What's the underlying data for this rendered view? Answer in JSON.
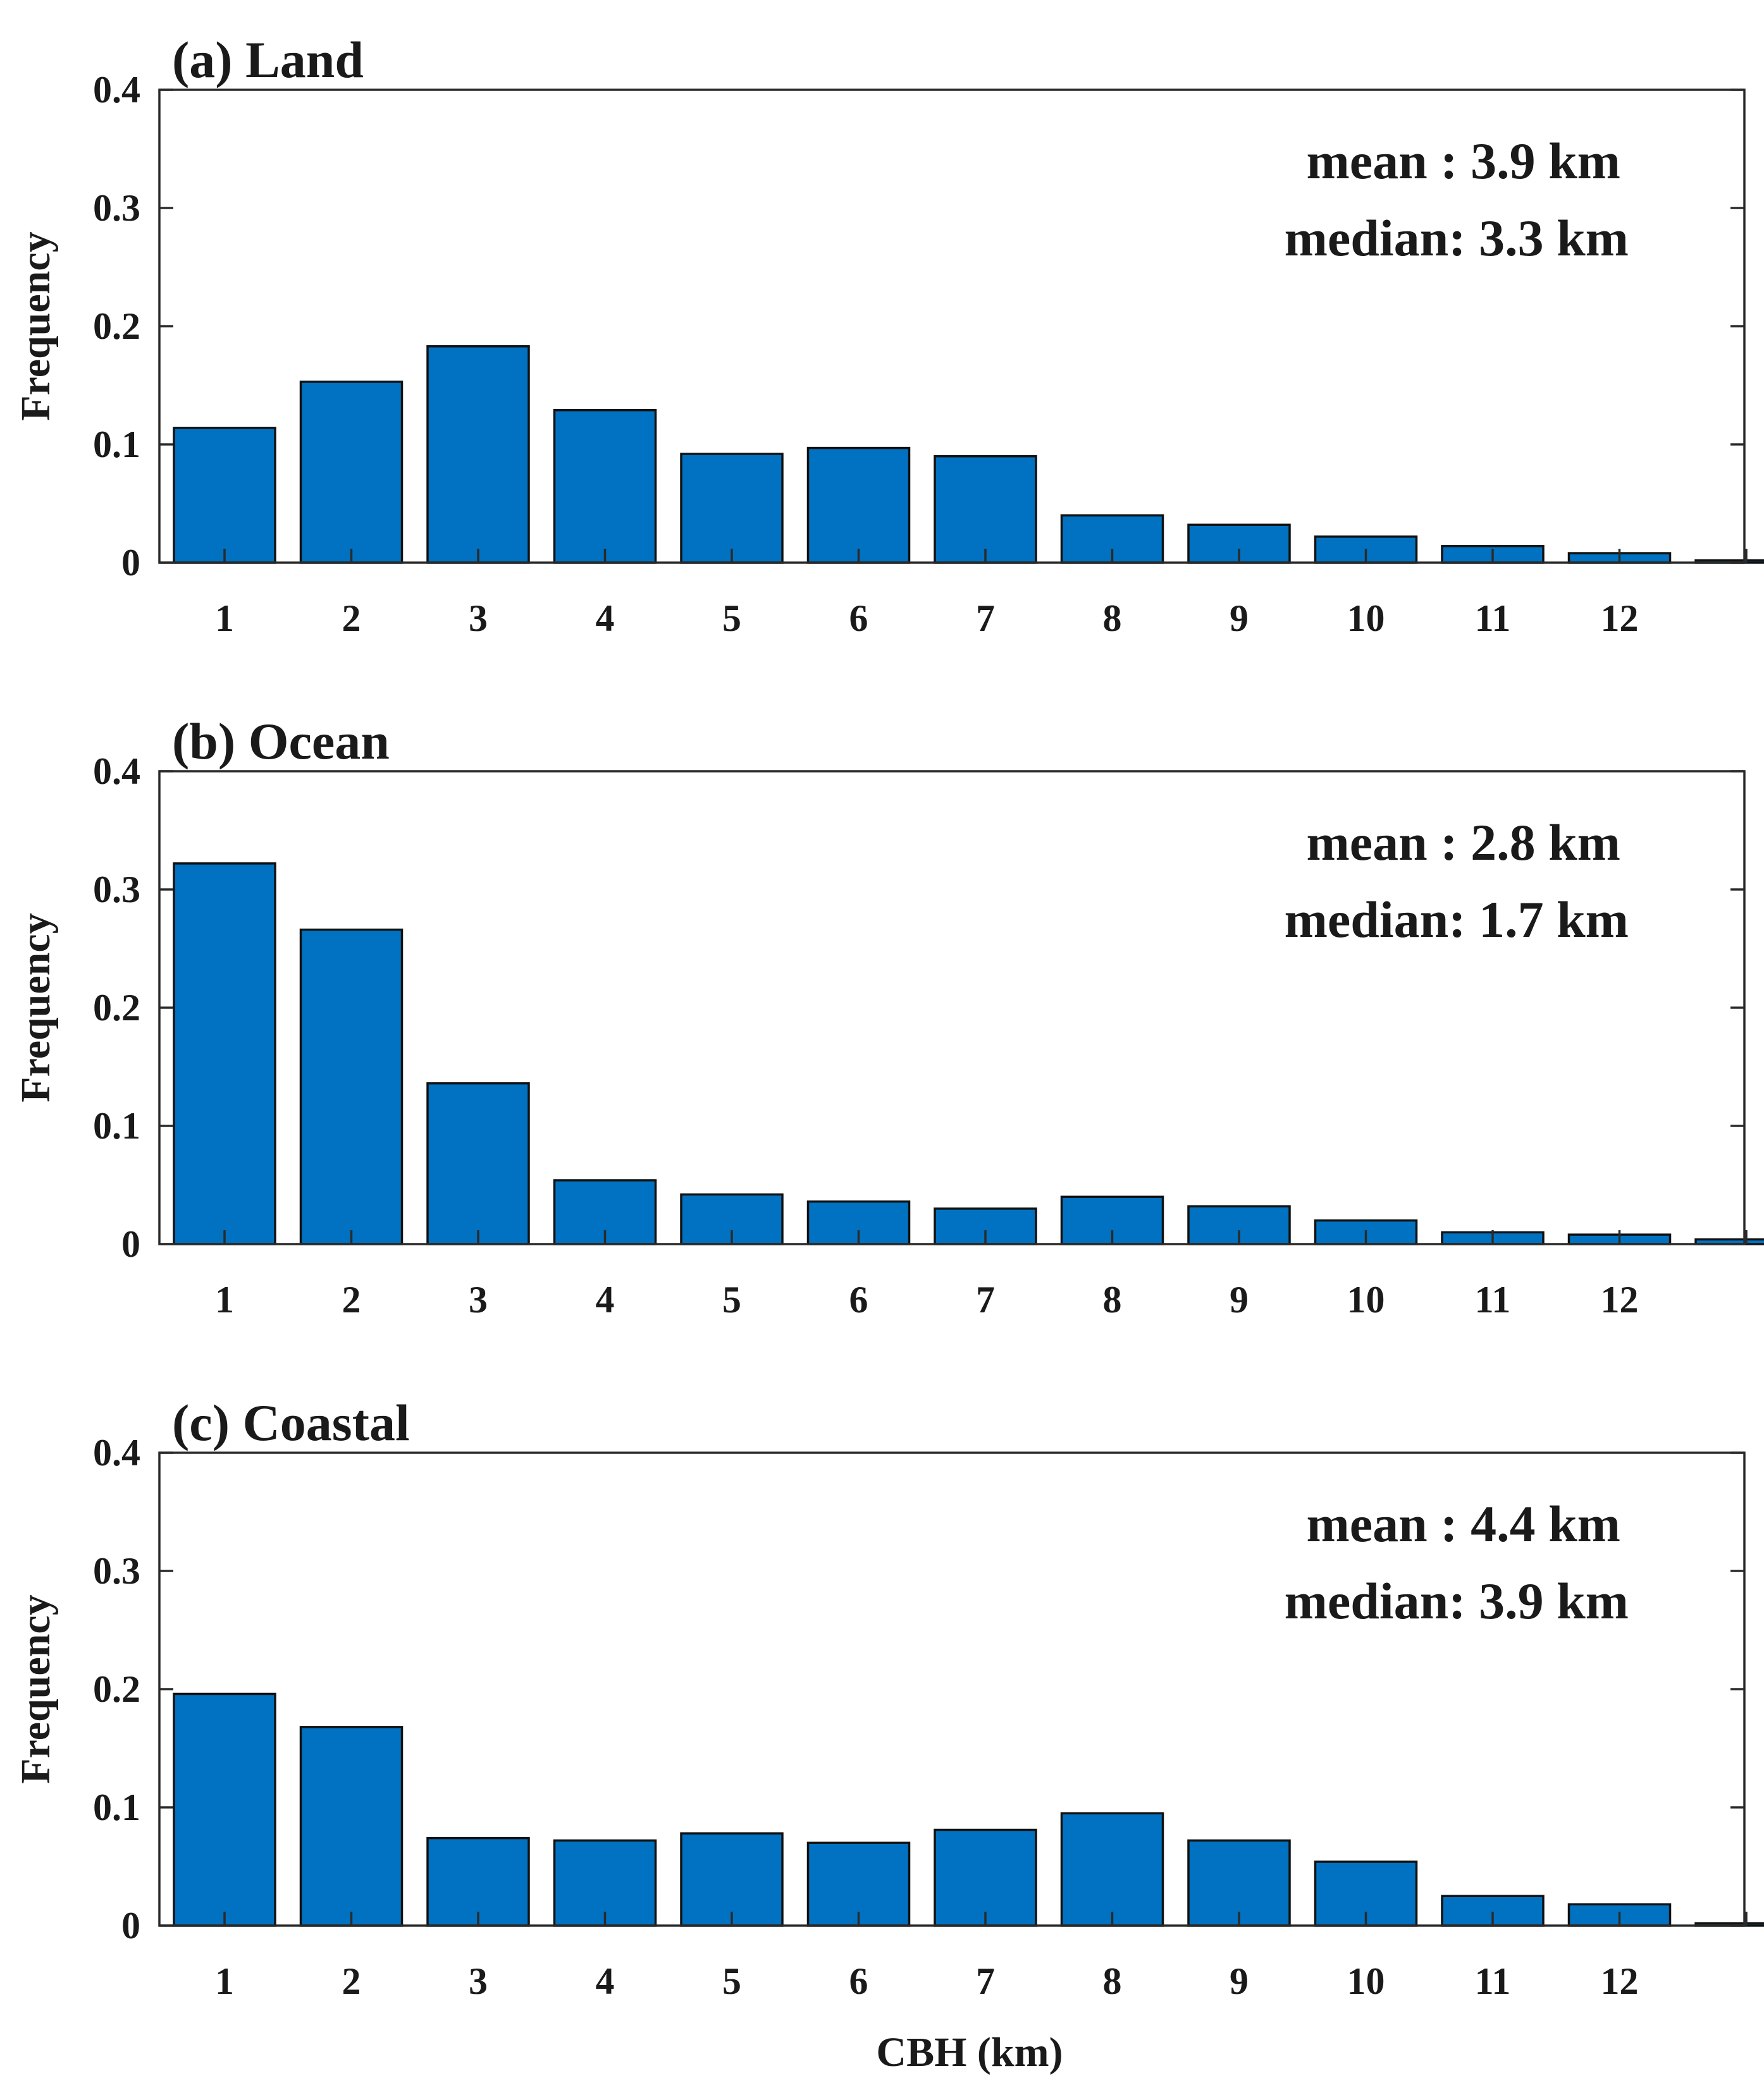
{
  "chart_data": [
    {
      "type": "bar",
      "title": "(a) Land",
      "xlabel": "",
      "ylabel": "Frequency",
      "ylim": [
        0,
        0.4
      ],
      "yticks": [
        "0",
        "0.1",
        "0.2",
        "0.3",
        "0.4"
      ],
      "categories": [
        "1",
        "2",
        "3",
        "4",
        "5",
        "6",
        "7",
        "8",
        "9",
        "10",
        "11",
        "12",
        ""
      ],
      "values": [
        0.114,
        0.153,
        0.183,
        0.129,
        0.092,
        0.097,
        0.09,
        0.04,
        0.032,
        0.022,
        0.014,
        0.008,
        0.002
      ],
      "annotations": [
        "mean : 3.9 km",
        "median: 3.3 km"
      ]
    },
    {
      "type": "bar",
      "title": "(b) Ocean",
      "xlabel": "",
      "ylabel": "Frequency",
      "ylim": [
        0,
        0.4
      ],
      "yticks": [
        "0",
        "0.1",
        "0.2",
        "0.3",
        "0.4"
      ],
      "categories": [
        "1",
        "2",
        "3",
        "4",
        "5",
        "6",
        "7",
        "8",
        "9",
        "10",
        "11",
        "12",
        ""
      ],
      "values": [
        0.322,
        0.266,
        0.136,
        0.054,
        0.042,
        0.036,
        0.03,
        0.04,
        0.032,
        0.02,
        0.01,
        0.008,
        0.004
      ],
      "annotations": [
        "mean : 2.8 km",
        "median: 1.7 km"
      ]
    },
    {
      "type": "bar",
      "title": "(c) Coastal",
      "xlabel": "CBH (km)",
      "ylabel": "Frequency",
      "ylim": [
        0,
        0.4
      ],
      "yticks": [
        "0",
        "0.1",
        "0.2",
        "0.3",
        "0.4"
      ],
      "categories": [
        "1",
        "2",
        "3",
        "4",
        "5",
        "6",
        "7",
        "8",
        "9",
        "10",
        "11",
        "12",
        ""
      ],
      "values": [
        0.196,
        0.168,
        0.074,
        0.072,
        0.078,
        0.07,
        0.081,
        0.095,
        0.072,
        0.054,
        0.025,
        0.018,
        0.002
      ],
      "annotations": [
        "mean : 4.4 km",
        "median: 3.9 km"
      ]
    }
  ],
  "colors": {
    "bar_fill": "#0072C1",
    "bar_edge": "#111111",
    "axis": "#2a2a2a",
    "text": "#1a1a1a"
  }
}
